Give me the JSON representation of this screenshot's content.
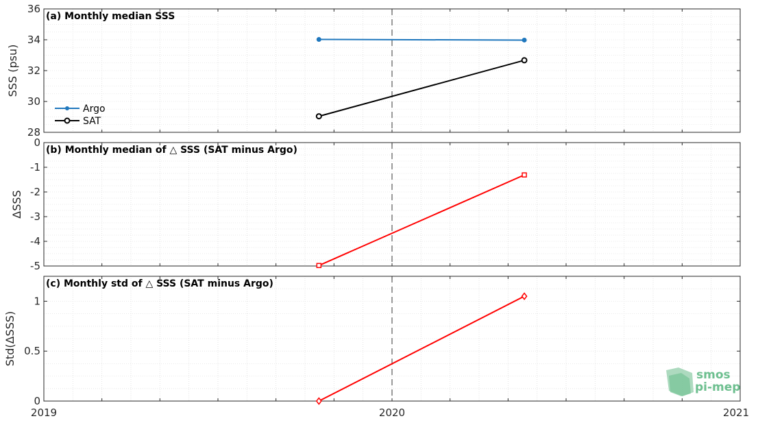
{
  "chart_data": [
    {
      "type": "line",
      "title": "(a) Monthly median SSS",
      "ylabel": "SSS (psu)",
      "xlim": [
        2019,
        2021
      ],
      "ylim": [
        28,
        36
      ],
      "yticks": [
        28,
        30,
        32,
        34,
        36
      ],
      "ytick_labels": [
        "28",
        "30",
        "32",
        "34",
        "36"
      ],
      "grid": true,
      "legend_position": "bottom-left",
      "series": [
        {
          "name": "Argo",
          "color": "#1f77bd",
          "marker": "filled-dot",
          "x": [
            2019.79,
            2020.38
          ],
          "y": [
            34.02,
            33.98
          ]
        },
        {
          "name": "SAT",
          "color": "#000000",
          "marker": "open-circle",
          "x": [
            2019.79,
            2020.38
          ],
          "y": [
            29.04,
            32.67
          ]
        }
      ]
    },
    {
      "type": "line",
      "title": "(b) Monthly median of △ SSS (SAT minus Argo)",
      "ylabel": "ΔSSS",
      "xlim": [
        2019,
        2021
      ],
      "ylim": [
        -5,
        0
      ],
      "yticks": [
        -5,
        -4,
        -3,
        -2,
        -1,
        0
      ],
      "ytick_labels": [
        "-5",
        "-4",
        "-3",
        "-2",
        "-1",
        "0"
      ],
      "grid": true,
      "reference_line_y": 0,
      "series": [
        {
          "color": "#ff0000",
          "marker": "open-square",
          "x": [
            2019.79,
            2020.38
          ],
          "y": [
            -4.98,
            -1.31
          ]
        }
      ]
    },
    {
      "type": "line",
      "title": "(c) Monthly std of △ SSS (SAT minus Argo)",
      "ylabel": "Std(ΔSSS)",
      "xlim": [
        2019,
        2021
      ],
      "ylim": [
        0,
        1.25
      ],
      "yticks": [
        0,
        0.5,
        1
      ],
      "ytick_labels": [
        "0",
        "0.5",
        "1"
      ],
      "grid": true,
      "xticks": [
        2019,
        2020,
        2021
      ],
      "xtick_labels": [
        "2019",
        "2020",
        "2021"
      ],
      "series": [
        {
          "color": "#ff0000",
          "marker": "open-diamond",
          "x": [
            2019.79,
            2020.38
          ],
          "y": [
            0.0,
            1.05
          ]
        }
      ]
    }
  ],
  "reference_line_x": 2020,
  "logo": {
    "line1": "smos",
    "line2": "pi-mep",
    "color": "#6dbf8f"
  }
}
